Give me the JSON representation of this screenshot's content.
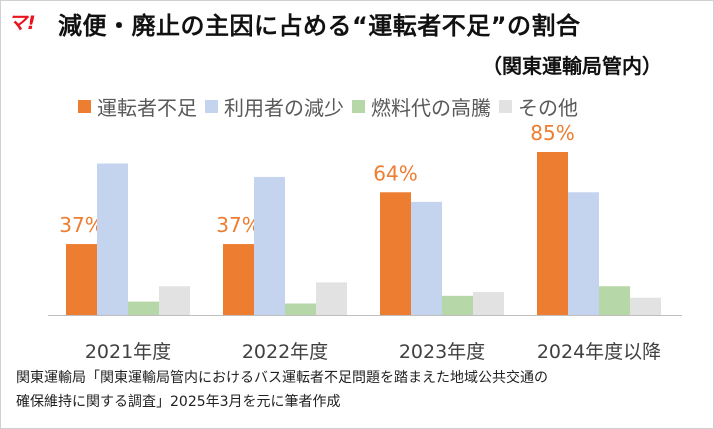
{
  "logo": "マ!",
  "title": "減便・廃止の主因に占める“運転者不足”の割合",
  "subtitle": "（関東運輸局管内）",
  "source": [
    "関東運輸局「関東運輸局管内におけるバス運転者不足問題を踏まえた地域公共交通の",
    "確保維持に関する調査」2025年3月を元に筆者作成"
  ],
  "chart_data": {
    "type": "bar",
    "categories": [
      "2021年度",
      "2022年度",
      "2023年度",
      "2024年度以降"
    ],
    "series": [
      {
        "name": "運転者不足",
        "color": "#ed7d31",
        "values": [
          37,
          37,
          64,
          85
        ],
        "labels": [
          "37%",
          "37%",
          "64%",
          "85%"
        ]
      },
      {
        "name": "利用者の減少",
        "color": "#c5d4ee",
        "values": [
          79,
          72,
          59,
          64
        ]
      },
      {
        "name": "燃料代の高騰",
        "color": "#b6d7a8",
        "values": [
          7,
          6,
          10,
          15
        ]
      },
      {
        "name": "その他",
        "color": "#e2e2e2",
        "values": [
          15,
          17,
          12,
          9
        ]
      }
    ],
    "ylim": [
      0,
      90
    ],
    "grid": false,
    "legend": "top",
    "label_color": "#ed7d31"
  }
}
